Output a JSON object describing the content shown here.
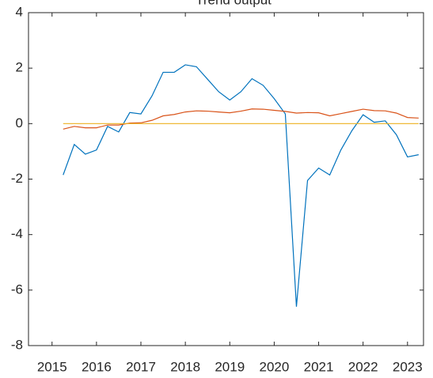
{
  "chart_data": {
    "type": "line",
    "title": "Trend output",
    "x": [
      2015.25,
      2015.5,
      2015.75,
      2016,
      2016.25,
      2016.5,
      2016.75,
      2017,
      2017.25,
      2017.5,
      2017.75,
      2018,
      2018.25,
      2018.5,
      2018.75,
      2019,
      2019.25,
      2019.5,
      2019.75,
      2020,
      2020.25,
      2020.5,
      2020.75,
      2021,
      2021.25,
      2021.5,
      2021.75,
      2022,
      2022.25,
      2022.5,
      2022.75,
      2023,
      2023.25
    ],
    "series": [
      {
        "color": "#0072BD",
        "values": [
          -1.85,
          -0.75,
          -1.1,
          -0.95,
          -0.1,
          -0.3,
          0.4,
          0.35,
          1.0,
          1.85,
          1.85,
          2.12,
          2.05,
          1.6,
          1.15,
          0.85,
          1.15,
          1.62,
          1.38,
          0.9,
          0.35,
          -6.6,
          -2.05,
          -1.6,
          -1.85,
          -0.95,
          -0.25,
          0.32,
          0.05,
          0.1,
          -0.4,
          -1.2,
          -1.12
        ]
      },
      {
        "color": "#D95319",
        "values": [
          -0.2,
          -0.1,
          -0.15,
          -0.15,
          -0.05,
          -0.05,
          0.02,
          0.03,
          0.12,
          0.28,
          0.33,
          0.42,
          0.46,
          0.45,
          0.42,
          0.39,
          0.45,
          0.53,
          0.52,
          0.48,
          0.44,
          0.38,
          0.4,
          0.39,
          0.28,
          0.36,
          0.44,
          0.52,
          0.47,
          0.46,
          0.38,
          0.22,
          0.2
        ]
      },
      {
        "color": "#EDB120",
        "values": [
          0,
          0,
          0,
          0,
          0,
          0,
          0,
          0,
          0,
          0,
          0,
          0,
          0,
          0,
          0,
          0,
          0,
          0,
          0,
          0,
          0,
          0,
          0,
          0,
          0,
          0,
          0,
          0,
          0,
          0,
          0,
          0,
          0
        ]
      }
    ],
    "xlim": [
      2014.47,
      2023.36
    ],
    "xticks": [
      2015,
      2016,
      2017,
      2018,
      2019,
      2020,
      2021,
      2022,
      2023
    ],
    "ylim": [
      -8,
      4
    ],
    "yticks": [
      -8,
      -6,
      -4,
      -2,
      0,
      2,
      4
    ],
    "grid": false
  }
}
